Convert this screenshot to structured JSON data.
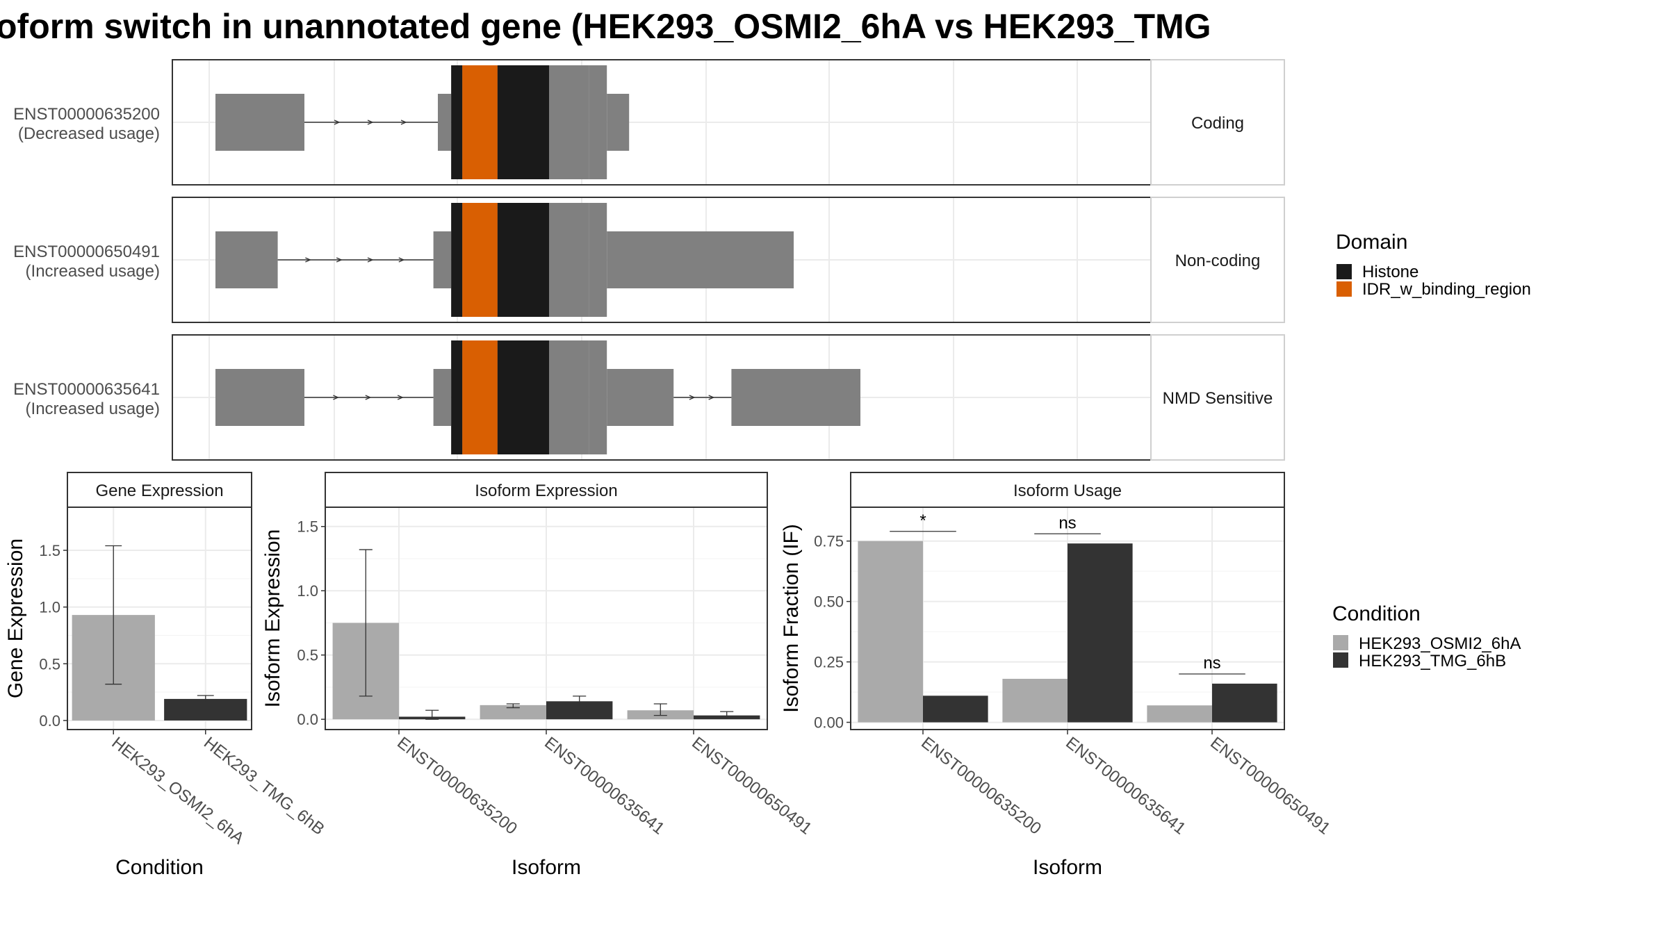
{
  "title": "oform switch in unannotated gene (HEK293_OSMI2_6hA vs HEK293_TMG",
  "colors": {
    "histone": "#1a1a1a",
    "idr": "#d95f02",
    "exon": "#808080",
    "condA": "#aaaaaa",
    "condB": "#333333",
    "grid": "#ebebeb",
    "strip_bg": "#ffffff",
    "border": "#333333"
  },
  "structure": {
    "tracks": [
      {
        "id": "ENST00000635200",
        "usage": "(Decreased usage)",
        "type": "Coding",
        "exons": [
          [
            0.0,
            0.2,
            "thick"
          ],
          [
            0.5,
            0.53,
            "thick"
          ],
          [
            0.53,
            0.84,
            "full"
          ],
          [
            0.84,
            0.88,
            "full"
          ],
          [
            0.88,
            0.93,
            "thick"
          ]
        ]
      },
      {
        "id": "ENST00000650491",
        "usage": "(Increased usage)",
        "type": "Non-coding",
        "exons": [
          [
            0.0,
            0.14,
            "thick"
          ],
          [
            0.49,
            0.53,
            "thick"
          ],
          [
            0.53,
            0.84,
            "full"
          ],
          [
            0.84,
            0.88,
            "full"
          ],
          [
            0.88,
            1.3,
            "thick"
          ]
        ]
      },
      {
        "id": "ENST00000635641",
        "usage": "(Increased usage)",
        "type": "NMD Sensitive",
        "exons": [
          [
            0.0,
            0.2,
            "thick"
          ],
          [
            0.49,
            0.53,
            "thick"
          ],
          [
            0.53,
            0.84,
            "full"
          ],
          [
            0.84,
            0.88,
            "full"
          ],
          [
            0.88,
            1.03,
            "thick"
          ],
          [
            1.16,
            1.45,
            "thick"
          ]
        ]
      }
    ],
    "domains": [
      {
        "name": "Histone",
        "ranges": [
          [
            0.53,
            0.555
          ],
          [
            0.634,
            0.75
          ]
        ]
      },
      {
        "name": "IDR_w_binding_region",
        "ranges": [
          [
            0.555,
            0.634
          ]
        ]
      }
    ]
  },
  "legends": {
    "domain": {
      "title": "Domain",
      "items": [
        "Histone",
        "IDR_w_binding_region"
      ]
    },
    "condition": {
      "title": "Condition",
      "items": [
        "HEK293_OSMI2_6hA",
        "HEK293_TMG_6hB"
      ]
    }
  },
  "chart_data": [
    {
      "type": "bar",
      "title": "Gene Expression",
      "xlabel": "Condition",
      "ylabel": "Gene Expression",
      "ylim": [
        -0.08,
        1.88
      ],
      "yticks": [
        "0.0",
        "0.5",
        "1.0",
        "1.5"
      ],
      "ytick_values": [
        0,
        0.5,
        1.0,
        1.5
      ],
      "categories": [
        "HEK293_OSMI2_6hA",
        "HEK293_TMG_6hB"
      ],
      "series": [
        {
          "values": [
            0.93,
            0.19
          ],
          "err_low": [
            0.32,
            0.16
          ],
          "err_high": [
            1.54,
            0.22
          ]
        }
      ],
      "bar_colors": [
        "#aaaaaa",
        "#333333"
      ]
    },
    {
      "type": "bar",
      "title": "Isoform Expression",
      "xlabel": "Isoform",
      "ylabel": "Isoform Expression",
      "ylim": [
        -0.08,
        1.65
      ],
      "yticks": [
        "0.0",
        "0.5",
        "1.0",
        "1.5"
      ],
      "ytick_values": [
        0,
        0.5,
        1.0,
        1.5
      ],
      "categories": [
        "ENST00000635200",
        "ENST00000635641",
        "ENST00000650491"
      ],
      "series": [
        {
          "name": "HEK293_OSMI2_6hA",
          "values": [
            0.75,
            0.11,
            0.07
          ],
          "err_low": [
            0.18,
            0.09,
            0.03
          ],
          "err_high": [
            1.32,
            0.12,
            0.12
          ]
        },
        {
          "name": "HEK293_TMG_6hB",
          "values": [
            0.02,
            0.14,
            0.03
          ],
          "err_low": [
            0.0,
            0.1,
            0.01
          ],
          "err_high": [
            0.07,
            0.18,
            0.06
          ]
        }
      ]
    },
    {
      "type": "bar",
      "title": "Isoform Usage",
      "xlabel": "Isoform",
      "ylabel": "Isoform Fraction (IF)",
      "ylim": [
        -0.03,
        0.89
      ],
      "yticks": [
        "0.00",
        "0.25",
        "0.50",
        "0.75"
      ],
      "ytick_values": [
        0,
        0.25,
        0.5,
        0.75
      ],
      "categories": [
        "ENST00000635200",
        "ENST00000635641",
        "ENST00000650491"
      ],
      "series": [
        {
          "name": "HEK293_OSMI2_6hA",
          "values": [
            0.75,
            0.18,
            0.07
          ]
        },
        {
          "name": "HEK293_TMG_6hB",
          "values": [
            0.11,
            0.74,
            0.16
          ]
        }
      ],
      "significance": [
        {
          "label": "*",
          "y": 0.79
        },
        {
          "label": "ns",
          "y": 0.78
        },
        {
          "label": "ns",
          "y": 0.2
        }
      ]
    }
  ]
}
